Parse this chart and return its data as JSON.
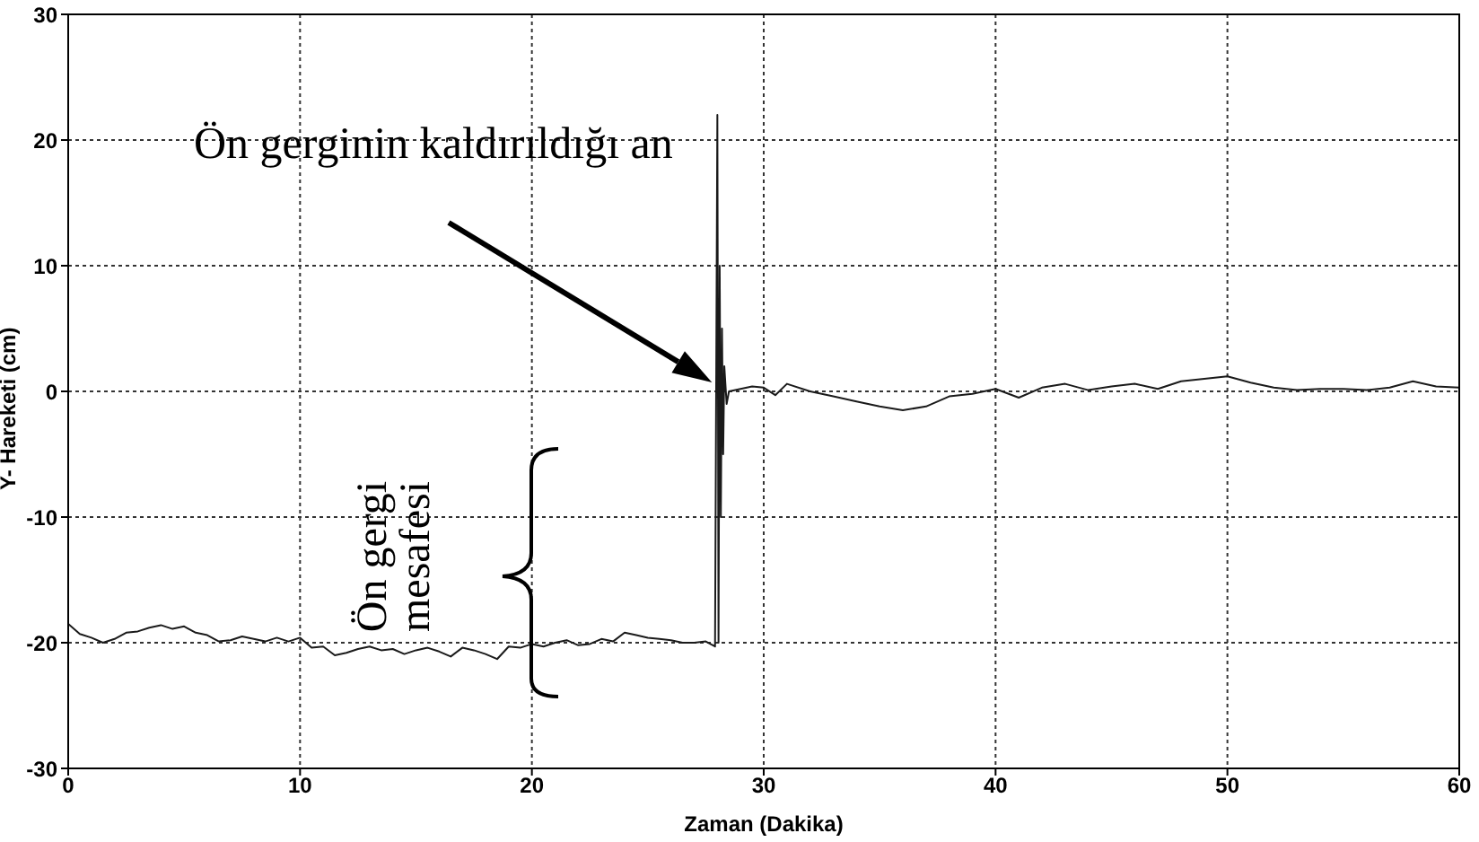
{
  "chart_data": {
    "type": "line",
    "xlabel": "Zaman (Dakika)",
    "ylabel": "Y- Hareketi (cm)",
    "xlim": [
      0,
      60
    ],
    "xticks": [
      0,
      10,
      20,
      30,
      40,
      50,
      60
    ],
    "ylim": [
      -30,
      30
    ],
    "yticks": [
      -30,
      -20,
      -10,
      0,
      10,
      20,
      30
    ],
    "grid": true,
    "annotations": [
      "Ön gerginin kaldırıldığı an",
      "Ön gergi\nmesafesi"
    ],
    "series": [
      {
        "color": "#1a1a1a",
        "x": [
          0,
          0.5,
          1,
          1.5,
          2,
          2.5,
          3,
          3.5,
          4,
          4.5,
          5,
          5.5,
          6,
          6.5,
          7,
          7.5,
          8,
          8.5,
          9,
          9.5,
          10,
          10.5,
          11,
          11.5,
          12,
          12.5,
          13,
          13.5,
          14,
          14.5,
          15,
          15.5,
          16,
          16.5,
          17,
          17.5,
          18,
          18.5,
          19,
          19.5,
          20,
          20.5,
          21,
          21.5,
          22,
          22.5,
          23,
          23.5,
          24,
          24.5,
          25,
          25.5,
          26,
          26.5,
          27,
          27.5,
          27.9,
          28,
          28.05,
          28.1,
          28.15,
          28.2,
          28.25,
          28.3,
          28.4,
          28.5,
          29,
          29.5,
          30,
          30.5,
          31,
          32,
          33,
          34,
          35,
          36,
          37,
          38,
          39,
          40,
          41,
          42,
          43,
          44,
          45,
          46,
          47,
          48,
          49,
          50,
          51,
          52,
          53,
          54,
          55,
          56,
          57,
          58,
          59,
          60
        ],
        "values": [
          -18.5,
          -19.3,
          -19.6,
          -20,
          -19.7,
          -19.2,
          -19.1,
          -18.8,
          -18.6,
          -18.9,
          -18.7,
          -19.2,
          -19.4,
          -19.9,
          -19.8,
          -19.5,
          -19.7,
          -19.9,
          -19.6,
          -19.9,
          -19.6,
          -20.4,
          -20.3,
          -21,
          -20.8,
          -20.5,
          -20.3,
          -20.6,
          -20.5,
          -20.9,
          -20.6,
          -20.4,
          -20.7,
          -21.1,
          -20.4,
          -20.6,
          -20.9,
          -21.3,
          -20.3,
          -20.4,
          -20.1,
          -20.3,
          -20,
          -19.8,
          -20.2,
          -20.1,
          -19.7,
          -19.9,
          -19.2,
          -19.4,
          -19.6,
          -19.7,
          -19.8,
          -20,
          -20,
          -19.9,
          -20.3,
          22,
          -20,
          10,
          -10,
          5,
          -5,
          2,
          -1,
          0,
          0.2,
          0.4,
          0.3,
          -0.3,
          0.6,
          0,
          -0.4,
          -0.8,
          -1.2,
          -1.5,
          -1.2,
          -0.4,
          -0.2,
          0.2,
          -0.5,
          0.3,
          0.6,
          0.1,
          0.4,
          0.6,
          0.2,
          0.8,
          1,
          1.2,
          0.7,
          0.3,
          0.1,
          0.2,
          0.2,
          0.1,
          0.3,
          0.8,
          0.4,
          0.3
        ]
      }
    ]
  }
}
